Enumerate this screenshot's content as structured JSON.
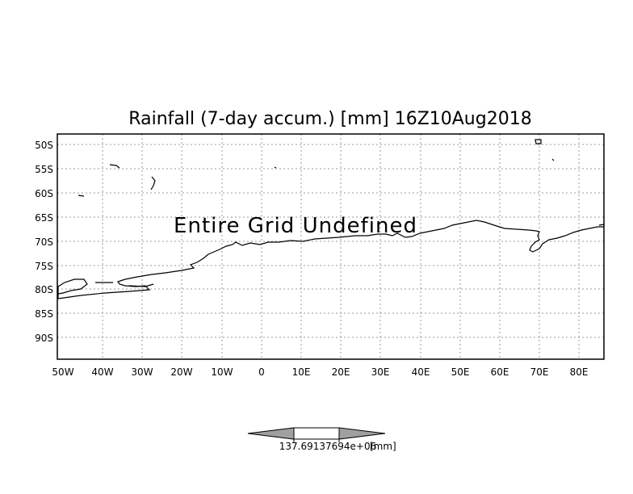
{
  "title": "Rainfall (7-day accum.) [mm] 16Z10Aug2018",
  "message": "Entire Grid Undefined",
  "lat_labels": [
    "50S",
    "55S",
    "60S",
    "65S",
    "70S",
    "75S",
    "80S",
    "85S",
    "90S"
  ],
  "lon_labels": [
    "50W",
    "40W",
    "30W",
    "20W",
    "10W",
    "0",
    "10E",
    "20E",
    "30E",
    "40E",
    "50E",
    "60E",
    "70E",
    "80E"
  ],
  "colorbar": {
    "value_label": "137.69137694e+06",
    "unit_label": "[mm]",
    "colors": {
      "left": "#a0a0a0",
      "middle": "#ffffff",
      "right": "#a0a0a0"
    }
  },
  "colors": {
    "frame": "#000000",
    "grid": "#9a9a9a",
    "coast": "#000000",
    "background": "#ffffff"
  }
}
